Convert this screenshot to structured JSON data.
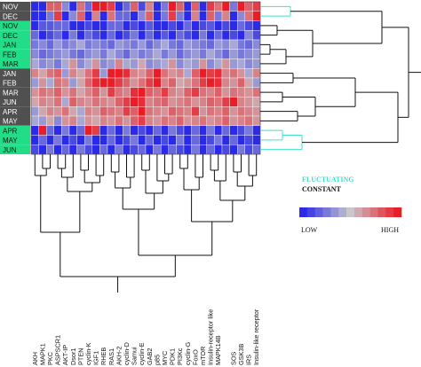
{
  "chart_data": {
    "type": "heatmap",
    "colors": {
      "low": "#2a2ae8",
      "mid": "#c8c8cc",
      "high": "#ea1c26",
      "fluctuating": "#40e0c8",
      "constant": "#111111",
      "row_label_dark_bg": "#505050",
      "row_label_green_bg": "#22dd88",
      "tree_black": "#111111"
    },
    "rows": [
      {
        "label": "NOV",
        "group": "dark"
      },
      {
        "label": "DEC",
        "group": "dark"
      },
      {
        "label": "NOV",
        "group": "green"
      },
      {
        "label": "DEC",
        "group": "green"
      },
      {
        "label": "JAN",
        "group": "green"
      },
      {
        "label": "FEB",
        "group": "green"
      },
      {
        "label": "MAR",
        "group": "green"
      },
      {
        "label": "JAN",
        "group": "dark"
      },
      {
        "label": "FEB",
        "group": "dark"
      },
      {
        "label": "MAR",
        "group": "dark"
      },
      {
        "label": "JUN",
        "group": "dark"
      },
      {
        "label": "APR",
        "group": "dark"
      },
      {
        "label": "MAY",
        "group": "dark"
      },
      {
        "label": "APR",
        "group": "green"
      },
      {
        "label": "MAY",
        "group": "green"
      },
      {
        "label": "JUN",
        "group": "green"
      }
    ],
    "columns": [
      "AKH",
      "MAPK1",
      "PKC",
      "ASPSCR1",
      "AKT-IP",
      "Dsor1",
      "PTEN",
      "cyclin-K",
      "IGF1",
      "RHEB",
      "RAS1",
      "AKH-2",
      "cyclin-D",
      "Samui",
      "cyclin-E",
      "GAB2",
      "p85",
      "MYC",
      "PDK1",
      "PI3Kc",
      "cyclin-G",
      "FoxO",
      "mTOR",
      "Insulin-receptor like",
      "MAPK14B",
      "MAPK14A",
      "SOS",
      "GSK3B",
      "IRS",
      "Insulin-like receptor"
    ],
    "column_labels_visible": [
      "AKH",
      "MAPK1",
      "PKC",
      "ASPSCR1",
      "AKT-IP",
      "Dsor1",
      "PTEN",
      "cyclin-K",
      "IGF1",
      "RHEB",
      "RAS1",
      "AKH-2",
      "cyclin-D",
      "Samui",
      "cyclin-E",
      "GAB2",
      "p85",
      "MYC",
      "PDK1",
      "PI3Kc",
      "cyclin-G",
      "FoxO",
      "mTOR",
      "Insulin-receptor like",
      "MAPK14B",
      "",
      "SOS",
      "GSK3B",
      "IRS",
      "Insulin-like receptor"
    ],
    "values": [
      [
        -1,
        -1,
        0.6,
        0.6,
        -0.4,
        -1,
        0.5,
        -0.6,
        1,
        1,
        0.8,
        -1,
        -0.6,
        0.6,
        -0.8,
        0.4,
        -1,
        -0.5,
        1,
        0.6,
        -1,
        0.6,
        -1,
        0.8,
        0.5,
        1,
        -0.5,
        1,
        0.6,
        0.8
      ],
      [
        -1,
        -1,
        -0.5,
        0.8,
        -1,
        -0.4,
        0.6,
        -1,
        0.4,
        -1,
        0.5,
        -0.6,
        -0.6,
        -1,
        -0.4,
        0.6,
        -1,
        -0.5,
        0.8,
        -0.5,
        -1,
        0.4,
        -1,
        0.6,
        -0.5,
        0.4,
        -1,
        -0.4,
        0.5,
        1
      ],
      [
        -1,
        -0.7,
        -0.7,
        -0.6,
        -0.6,
        -1,
        -1,
        -0.8,
        -1,
        -1,
        -0.6,
        -0.6,
        -1,
        -0.8,
        -1,
        -0.7,
        -1,
        -1,
        -0.8,
        -1,
        -0.6,
        -1,
        -0.8,
        -0.7,
        -1,
        -0.8,
        -1,
        -0.6,
        -0.8,
        -1
      ],
      [
        -0.6,
        -1,
        -0.8,
        -0.6,
        -1,
        -0.5,
        -1,
        -0.6,
        -0.8,
        -1,
        -0.6,
        -1,
        -0.8,
        -0.5,
        -1,
        -0.6,
        -1,
        -0.7,
        -1,
        -0.6,
        -0.8,
        -1,
        -0.5,
        -1,
        -0.6,
        -1,
        -0.8,
        -1,
        -0.4,
        -0.8
      ],
      [
        -0.5,
        -0.4,
        -0.6,
        -0.3,
        -0.5,
        -0.4,
        -0.2,
        -0.5,
        -0.4,
        -0.5,
        -0.6,
        -0.3,
        -0.4,
        -0.5,
        -0.3,
        -0.6,
        -0.4,
        -0.2,
        -0.5,
        -0.6,
        -0.3,
        -0.4,
        -0.5,
        -0.6,
        -0.3,
        -0.4,
        -0.2,
        -0.5,
        -0.6,
        -0.4
      ],
      [
        -0.4,
        -0.6,
        -0.5,
        -0.4,
        -0.3,
        -0.5,
        -0.6,
        -0.4,
        -0.3,
        -0.5,
        -0.2,
        -0.4,
        -0.6,
        -0.3,
        -0.5,
        -0.4,
        -0.2,
        -0.5,
        -0.3,
        -0.6,
        -0.4,
        -0.3,
        -0.5,
        -0.2,
        -0.4,
        -0.6,
        -0.3,
        -0.5,
        -0.4,
        -0.3
      ],
      [
        -0.2,
        -0.4,
        -0.3,
        -0.5,
        -0.2,
        0.3,
        -0.4,
        -0.2,
        0.3,
        -0.4,
        -0.3,
        0.4,
        -0.2,
        -0.3,
        0.2,
        -0.4,
        -0.3,
        -0.2,
        0.3,
        -0.4,
        -0.2,
        -0.3,
        0.3,
        -0.4,
        -0.2,
        0.3,
        -0.3,
        -0.2,
        -0.4,
        -0.3
      ],
      [
        0.4,
        0.2,
        0.5,
        0.6,
        -0.3,
        0.4,
        0.2,
        0.5,
        0.8,
        -0.3,
        1,
        1,
        0.9,
        0.4,
        0.3,
        0.6,
        1,
        0.5,
        0.3,
        0.4,
        -0.2,
        0.6,
        1,
        0.8,
        0.9,
        0.4,
        0.5,
        0.3,
        -0.2,
        0.4
      ],
      [
        -0.3,
        0.3,
        -0.2,
        0.5,
        0.4,
        -0.3,
        0.2,
        0.6,
        0.9,
        1,
        1,
        0.8,
        0.6,
        0.3,
        0.5,
        0.8,
        1,
        0.4,
        0.6,
        0.2,
        0.3,
        0.5,
        0.8,
        1,
        0.9,
        0.4,
        0.3,
        0.6,
        0.2,
        -0.3
      ],
      [
        0.3,
        0.5,
        0.4,
        0.6,
        0.3,
        0.5,
        0.2,
        0.4,
        0.6,
        0.3,
        0.8,
        0.5,
        0.4,
        0.9,
        1,
        0.6,
        0.5,
        0.8,
        0.4,
        0.3,
        0.6,
        0.8,
        0.5,
        0.4,
        0.6,
        0.3,
        0.5,
        0.4,
        0.3,
        0.5
      ],
      [
        0.2,
        0.4,
        0.3,
        0.5,
        -0.2,
        0.6,
        0.4,
        0.3,
        0.5,
        0.4,
        0.3,
        0.6,
        0.8,
        1,
        0.9,
        0.4,
        0.5,
        0.6,
        0.3,
        0.4,
        0.5,
        0.3,
        0.4,
        0.6,
        0.5,
        0.8,
        1,
        0.4,
        0.3,
        0.2
      ],
      [
        -0.3,
        0.2,
        0.4,
        0.3,
        0.5,
        0.2,
        -0.2,
        0.4,
        0.3,
        0.6,
        0.5,
        0.4,
        0.8,
        0.6,
        1,
        0.5,
        0.4,
        0.3,
        0.6,
        0.5,
        0.4,
        0.8,
        0.3,
        0.5,
        0.4,
        0.6,
        0.3,
        0.5,
        0.4,
        0.3
      ],
      [
        -0.2,
        -0.3,
        0.2,
        -0.4,
        0.3,
        0.4,
        -0.2,
        0.3,
        0.2,
        0.4,
        0.3,
        0.5,
        0.3,
        0.6,
        0.8,
        0.4,
        0.3,
        0.5,
        0.4,
        0.6,
        0.3,
        0.4,
        0.5,
        0.3,
        0.4,
        0.6,
        0.3,
        0.4,
        0.5,
        0.3
      ],
      [
        -1,
        1,
        -0.6,
        -1,
        -0.5,
        -1,
        -0.6,
        1,
        0.8,
        -1,
        -0.6,
        -1,
        -0.5,
        -1,
        -0.8,
        -1,
        -0.6,
        -1,
        -0.5,
        -0.8,
        -1,
        -0.6,
        -1,
        -0.5,
        -1,
        -0.6,
        -1,
        -0.8,
        -0.5,
        -1
      ],
      [
        -1,
        -0.6,
        -1,
        -0.5,
        -1,
        -0.8,
        -1,
        -0.5,
        -1,
        -1,
        -0.6,
        -1,
        -0.8,
        -0.5,
        -1,
        -0.6,
        -1,
        -0.8,
        -1,
        -0.5,
        -1,
        -0.6,
        -1,
        -0.8,
        -0.5,
        -1,
        -0.6,
        -1,
        -0.8,
        -1
      ],
      [
        -0.8,
        -1,
        -0.5,
        -1,
        -0.6,
        -1,
        -0.5,
        -0.8,
        -1,
        -0.6,
        -1,
        -0.5,
        -1,
        -0.8,
        -0.6,
        -1,
        -0.5,
        -1,
        -0.6,
        -0.8,
        -1,
        -0.5,
        -1,
        -0.6,
        -1,
        -0.8,
        -1,
        -0.5,
        -0.8,
        -0.6
      ]
    ],
    "value_range": [
      -1,
      1
    ],
    "legend": {
      "fluctuating_label": "FLUCTUATING",
      "constant_label": "CONSTANT",
      "low_label": "LOW",
      "high_label": "HIGH"
    }
  }
}
